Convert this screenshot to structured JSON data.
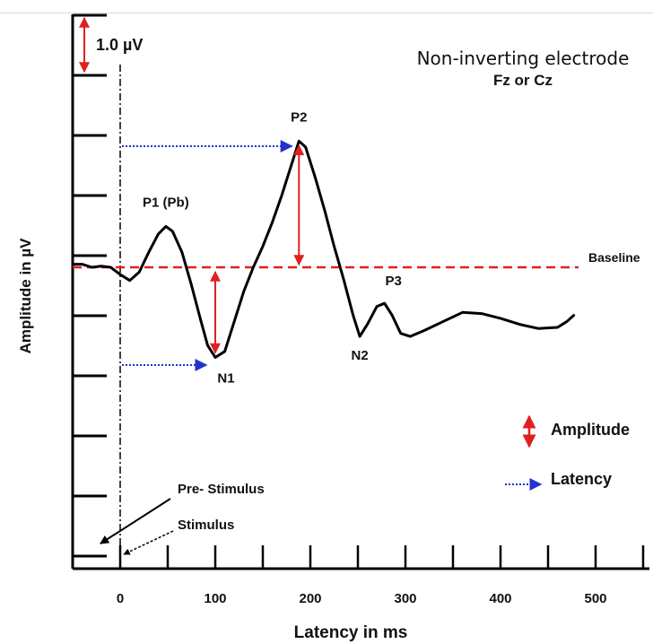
{
  "chart_data": {
    "type": "line",
    "title": "Non-inverting electrode",
    "subtitle": "Fz or Cz",
    "xlabel": "Latency in ms",
    "ylabel": "Amplitude in µV",
    "x_ticks": [
      0,
      100,
      200,
      300,
      400,
      500
    ],
    "xlim": [
      -50,
      550
    ],
    "scale_bar_label": "1.0 µV",
    "scale_bar_uV": 1.0,
    "baseline_label": "Baseline",
    "series": [
      {
        "points": [
          [
            -50,
            0.05
          ],
          [
            -40,
            0.05
          ],
          [
            -30,
            0.0
          ],
          [
            -20,
            0.02
          ],
          [
            -10,
            0.0
          ],
          [
            0,
            -0.12
          ],
          [
            10,
            -0.22
          ],
          [
            20,
            -0.08
          ],
          [
            30,
            0.25
          ],
          [
            40,
            0.55
          ],
          [
            48,
            0.68
          ],
          [
            55,
            0.6
          ],
          [
            65,
            0.25
          ],
          [
            75,
            -0.3
          ],
          [
            85,
            -0.9
          ],
          [
            92,
            -1.3
          ],
          [
            100,
            -1.5
          ],
          [
            110,
            -1.4
          ],
          [
            120,
            -0.9
          ],
          [
            130,
            -0.4
          ],
          [
            140,
            -0.0
          ],
          [
            150,
            0.35
          ],
          [
            160,
            0.75
          ],
          [
            170,
            1.2
          ],
          [
            180,
            1.7
          ],
          [
            188,
            2.1
          ],
          [
            195,
            2.0
          ],
          [
            205,
            1.5
          ],
          [
            215,
            0.95
          ],
          [
            225,
            0.35
          ],
          [
            235,
            -0.2
          ],
          [
            245,
            -0.8
          ],
          [
            252,
            -1.15
          ],
          [
            260,
            -0.95
          ],
          [
            270,
            -0.65
          ],
          [
            278,
            -0.6
          ],
          [
            286,
            -0.8
          ],
          [
            295,
            -1.1
          ],
          [
            305,
            -1.15
          ],
          [
            320,
            -1.05
          ],
          [
            340,
            -0.9
          ],
          [
            360,
            -0.75
          ],
          [
            380,
            -0.77
          ],
          [
            400,
            -0.85
          ],
          [
            420,
            -0.95
          ],
          [
            440,
            -1.02
          ],
          [
            460,
            -1.0
          ],
          [
            470,
            -0.9
          ],
          [
            477,
            -0.8
          ]
        ]
      }
    ],
    "peaks": [
      {
        "label": "P1 (Pb)",
        "x": 48,
        "y": 0.68
      },
      {
        "label": "N1",
        "x": 100,
        "y": -1.5
      },
      {
        "label": "P2",
        "x": 188,
        "y": 2.1
      },
      {
        "label": "N2",
        "x": 252,
        "y": -1.15
      },
      {
        "label": "P3",
        "x": 278,
        "y": -0.6
      }
    ],
    "annotations": {
      "pre_stimulus": "Pre- Stimulus",
      "stimulus": "Stimulus"
    },
    "legend": {
      "placement": "bottom-right",
      "items": [
        {
          "label": "Amplitude",
          "color": "#e02020",
          "symbol": "double-arrow-vertical"
        },
        {
          "label": "Latency",
          "color": "#2233cc",
          "symbol": "dotted-arrow-right"
        }
      ]
    },
    "colors": {
      "waveform": "#000000",
      "baseline": "#e02020",
      "amplitude_arrow": "#e02020",
      "latency_arrow": "#2233cc",
      "axis": "#000000"
    },
    "grid": false
  }
}
